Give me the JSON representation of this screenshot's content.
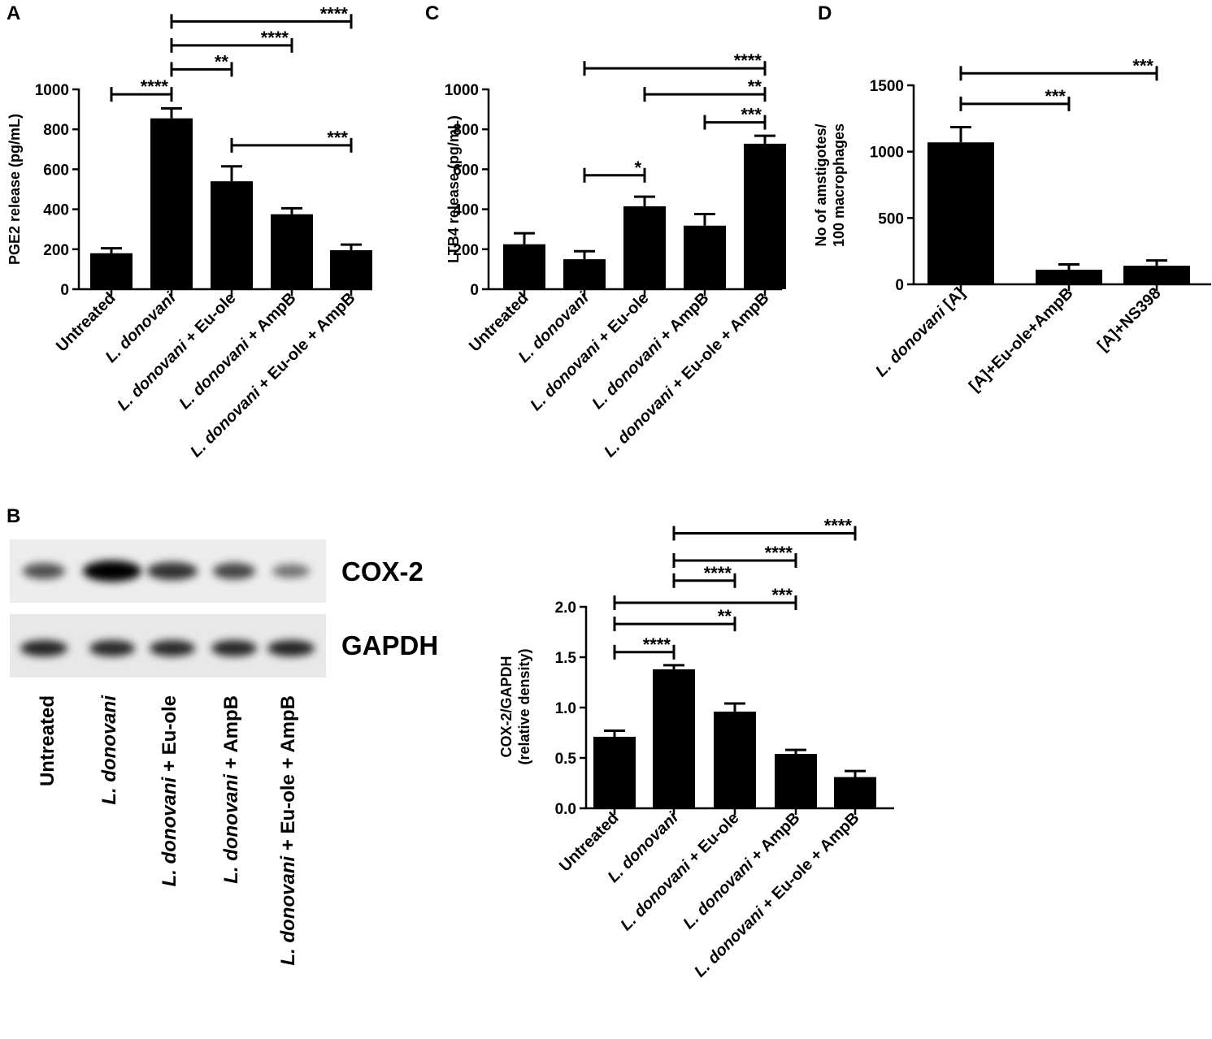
{
  "figure": {
    "panel_labels": [
      "A",
      "B",
      "C",
      "D"
    ]
  },
  "chart_data": [
    {
      "id": "A",
      "type": "bar",
      "ylabel": "PGE2 release (pg/mL)",
      "ylim": [
        0,
        1000
      ],
      "yticks": [
        0,
        200,
        400,
        600,
        800,
        1000
      ],
      "categories": [
        {
          "pre": "",
          "it": "",
          "post": "Untreated"
        },
        {
          "pre": "",
          "it": "L. donovani",
          "post": ""
        },
        {
          "pre": "",
          "it": "L. donovani",
          "post": " + Eu-ole"
        },
        {
          "pre": "",
          "it": "L. donovani",
          "post": "  + AmpB"
        },
        {
          "pre": "",
          "it": "L. donovani",
          "post": " + Eu-ole + AmpB"
        }
      ],
      "values": [
        180,
        855,
        540,
        375,
        195
      ],
      "errors": [
        25,
        50,
        75,
        30,
        28
      ],
      "significance": [
        {
          "from": 0,
          "to": 1,
          "label": "****",
          "y": 975
        },
        {
          "from": 1,
          "to": 2,
          "label": "**",
          "y": 1100
        },
        {
          "from": 1,
          "to": 3,
          "label": "****",
          "y": 1220
        },
        {
          "from": 1,
          "to": 4,
          "label": "****",
          "y": 1340
        },
        {
          "from": 2,
          "to": 4,
          "label": "***",
          "y": 720
        }
      ]
    },
    {
      "id": "C",
      "type": "bar",
      "ylabel": "LTB4 release (pg/mL)",
      "ylim": [
        0,
        1000
      ],
      "yticks": [
        0,
        200,
        400,
        600,
        800,
        1000
      ],
      "categories": [
        {
          "pre": "",
          "it": "",
          "post": "Untreated"
        },
        {
          "pre": "",
          "it": "L. donovani",
          "post": ""
        },
        {
          "pre": "",
          "it": "L. donovani",
          "post": " + Eu-ole"
        },
        {
          "pre": "",
          "it": "L. donovani",
          "post": "  + AmpB"
        },
        {
          "pre": "",
          "it": "L. donovani",
          "post": " +  Eu-ole + AmpB"
        }
      ],
      "values": [
        225,
        150,
        415,
        318,
        728
      ],
      "errors": [
        55,
        40,
        48,
        58,
        40
      ],
      "significance": [
        {
          "from": 1,
          "to": 2,
          "label": "*",
          "y": 570
        },
        {
          "from": 3,
          "to": 4,
          "label": "***",
          "y": 835
        },
        {
          "from": 2,
          "to": 4,
          "label": "**",
          "y": 975
        },
        {
          "from": 1,
          "to": 4,
          "label": "****",
          "y": 1105
        }
      ]
    },
    {
      "id": "D",
      "type": "bar",
      "ylabel": [
        "No of amstigotes/",
        "100 macrophages"
      ],
      "ylim": [
        0,
        1500
      ],
      "yticks": [
        0,
        500,
        1000,
        1500
      ],
      "categories": [
        {
          "pre": "",
          "it": "L. donovani",
          "post": " [A]"
        },
        {
          "pre": "",
          "it": "",
          "post": "[A]+Eu-ole+AmpB"
        },
        {
          "pre": "",
          "it": "",
          "post": "[A]+NS398"
        }
      ],
      "values": [
        1070,
        110,
        140
      ],
      "errors": [
        115,
        40,
        40
      ],
      "significance": [
        {
          "from": 0,
          "to": 1,
          "label": "***",
          "y": 1360
        },
        {
          "from": 0,
          "to": 2,
          "label": "***",
          "y": 1590
        }
      ]
    },
    {
      "id": "B",
      "type": "bar",
      "ylabel": [
        "COX-2/GAPDH",
        "(relative density)"
      ],
      "ylim": [
        0,
        2.0
      ],
      "yticks": [
        "0.0",
        "0.5",
        "1.0",
        "1.5",
        "2.0"
      ],
      "categories": [
        {
          "pre": "",
          "it": "",
          "post": "Untreated"
        },
        {
          "pre": "",
          "it": "L. donovani",
          "post": ""
        },
        {
          "pre": "",
          "it": "L. donovani",
          "post": " + Eu-ole"
        },
        {
          "pre": "",
          "it": "L. donovani",
          "post": "  + AmpB"
        },
        {
          "pre": "",
          "it": "L. donovani",
          "post": " + Eu-ole + AmpB"
        }
      ],
      "values": [
        0.71,
        1.38,
        0.96,
        0.54,
        0.31
      ],
      "errors": [
        0.06,
        0.04,
        0.08,
        0.04,
        0.06
      ],
      "significance": [
        {
          "from": 0,
          "to": 1,
          "label": "****",
          "y": 1.55
        },
        {
          "from": 0,
          "to": 2,
          "label": "**",
          "y": 1.83
        },
        {
          "from": 0,
          "to": 3,
          "label": "***",
          "y": 2.04
        },
        {
          "from": 1,
          "to": 2,
          "label": "****",
          "y": 2.26
        },
        {
          "from": 1,
          "to": 3,
          "label": "****",
          "y": 2.46
        },
        {
          "from": 1,
          "to": 4,
          "label": "****",
          "y": 2.73
        }
      ]
    }
  ],
  "blot": {
    "labels": [
      "COX-2",
      "GAPDH"
    ],
    "cox2_intensity": [
      0.55,
      1.0,
      0.72,
      0.6,
      0.35
    ],
    "gapdh_intensity": [
      0.82,
      0.78,
      0.78,
      0.8,
      0.82
    ],
    "lanes": [
      {
        "pre": "",
        "it": "",
        "post": "Untreated"
      },
      {
        "pre": "",
        "it": "L. donovani",
        "post": ""
      },
      {
        "pre": "",
        "it": "L. donovani",
        "post": " + Eu-ole"
      },
      {
        "pre": "",
        "it": "L. donovani",
        "post": " + AmpB"
      },
      {
        "pre": "",
        "it": "L. donovani",
        "post": " + Eu-ole + AmpB"
      }
    ]
  }
}
